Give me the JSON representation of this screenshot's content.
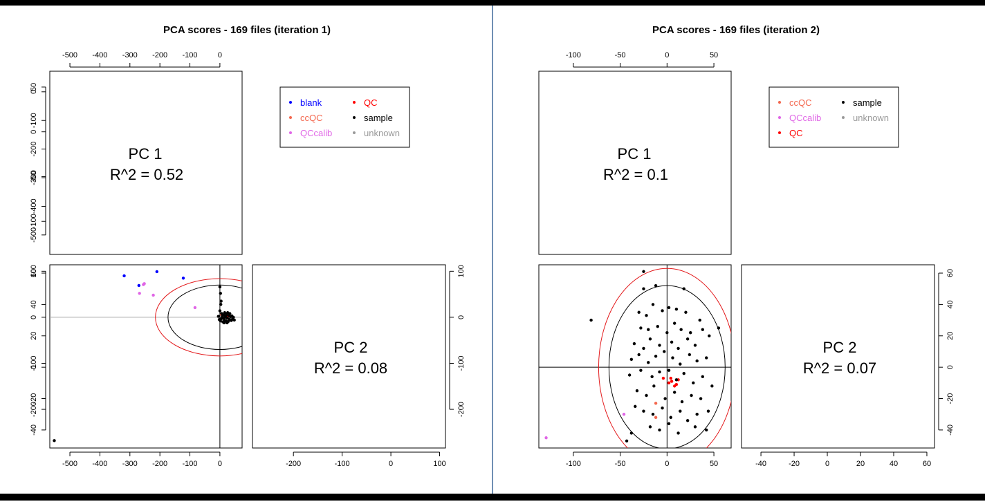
{
  "chart_data": [
    {
      "type": "scatter",
      "title": "PCA scores - 169 files (iteration 1)",
      "annotations": [
        "PC 1",
        "R^2 = 0.52",
        "PC 2",
        "R^2 = 0.08"
      ],
      "xlim": [
        -567,
        74
      ],
      "xticks": [
        -500,
        -400,
        -300,
        -200,
        -100,
        0
      ],
      "ylim": [
        -284,
        114
      ],
      "yticks": [
        100,
        0,
        -100,
        -200
      ],
      "y1lim": [
        -568,
        72
      ],
      "y1ticks": [
        0,
        -100,
        -200,
        -300,
        -400,
        -500
      ],
      "x2lim": [
        -284,
        112
      ],
      "x2ticks": [
        -200,
        -100,
        0,
        100
      ],
      "ellipses": [
        {
          "color": "#000000",
          "rx": 173,
          "ry": 70
        },
        {
          "color": "#e31a1c",
          "rx": 215,
          "ry": 84
        }
      ],
      "series": [
        {
          "name": "blank",
          "color": "#0000ff",
          "x": [
            -319,
            -270,
            -210,
            -122
          ],
          "y": [
            90,
            69,
            99,
            85
          ]
        },
        {
          "name": "ccQC",
          "color": "#f4674e",
          "x": [
            5
          ],
          "y": [
            6
          ]
        },
        {
          "name": "QCcalib",
          "color": "#e066e6",
          "x": [
            -268,
            -252,
            -222,
            -255,
            -83
          ],
          "y": [
            52,
            73,
            48,
            71,
            21
          ]
        },
        {
          "name": "QC",
          "color": "#ff0000",
          "x": [
            18,
            22,
            26
          ],
          "y": [
            4,
            6,
            2
          ]
        },
        {
          "name": "sample",
          "color": "#000000",
          "x": [
            -552,
            0,
            2,
            4,
            3,
            0,
            -2,
            2,
            5,
            8,
            10,
            12,
            15,
            18,
            20,
            22,
            25,
            28,
            30,
            32,
            35,
            38,
            40,
            42,
            45,
            6,
            14,
            24,
            33,
            16,
            26,
            -5,
            48,
            12,
            20
          ],
          "y": [
            -268,
            66,
            52,
            35,
            28,
            14,
            -5,
            -8,
            -3,
            2,
            -10,
            5,
            -6,
            3,
            -8,
            6,
            -2,
            -9,
            4,
            -5,
            1,
            -7,
            3,
            -4,
            0,
            8,
            -12,
            -12,
            8,
            10,
            10,
            2,
            -6,
            -2,
            0
          ]
        },
        {
          "name": "unknown",
          "color": "#999999",
          "x": [],
          "y": []
        }
      ]
    },
    {
      "type": "scatter",
      "title": "PCA scores - 169 files (iteration 2)",
      "annotations": [
        "PC 1",
        "R^2 = 0.1",
        "PC 2",
        "R^2 = 0.07"
      ],
      "xlim": [
        -136.8,
        68.4
      ],
      "xticks": [
        -100,
        -50,
        0,
        50
      ],
      "ylim": [
        -51.5,
        65.3
      ],
      "yticks": [
        60,
        40,
        20,
        0,
        -20,
        -40
      ],
      "y1lim": [
        -136.9,
        67.7
      ],
      "y1ticks": [
        50,
        0,
        -50,
        -100
      ],
      "x2lim": [
        -51.7,
        64.6
      ],
      "x2ticks": [
        -40,
        -20,
        0,
        20,
        40,
        60
      ],
      "ellipses": [
        {
          "color": "#000000",
          "rx": 62,
          "ry": 52
        },
        {
          "color": "#e31a1c",
          "rx": 73,
          "ry": 63
        }
      ],
      "series": [
        {
          "name": "ccQC",
          "color": "#f4674e",
          "x": [
            -12,
            -12
          ],
          "y": [
            -23,
            -32
          ]
        },
        {
          "name": "QCcalib",
          "color": "#e066e6",
          "x": [
            -129,
            -46
          ],
          "y": [
            -45,
            -30
          ]
        },
        {
          "name": "QC",
          "color": "#ff0000",
          "x": [
            -4,
            2,
            5,
            8,
            10,
            12,
            4
          ],
          "y": [
            -7,
            -10,
            -9,
            -12,
            -11,
            -8,
            -7
          ]
        },
        {
          "name": "sample",
          "color": "#000000",
          "x": [
            -43,
            -38,
            -25,
            -12,
            18,
            30,
            42,
            55,
            -30,
            -22,
            -15,
            -5,
            2,
            10,
            20,
            35,
            -28,
            -20,
            -10,
            0,
            8,
            15,
            25,
            38,
            -35,
            -25,
            -18,
            -8,
            5,
            12,
            22,
            30,
            45,
            -38,
            -30,
            -20,
            -12,
            -3,
            6,
            14,
            24,
            32,
            42,
            -40,
            -28,
            -16,
            -8,
            2,
            10,
            18,
            28,
            38,
            48,
            -32,
            -22,
            -14,
            -2,
            8,
            16,
            26,
            36,
            -25,
            -15,
            -5,
            4,
            14,
            22,
            32,
            -18,
            -8,
            12,
            2,
            -34,
            44,
            -81,
            -25
          ],
          "y": [
            -47,
            -42,
            50,
            52,
            50,
            -38,
            -40,
            25,
            35,
            33,
            40,
            36,
            38,
            37,
            35,
            30,
            25,
            24,
            26,
            22,
            28,
            24,
            22,
            24,
            15,
            12,
            18,
            14,
            16,
            12,
            18,
            14,
            20,
            5,
            8,
            3,
            7,
            10,
            6,
            2,
            8,
            4,
            6,
            -5,
            -2,
            -6,
            -3,
            -2,
            -8,
            -4,
            -10,
            -6,
            -12,
            -15,
            -18,
            -12,
            -20,
            -16,
            -22,
            -18,
            -20,
            -28,
            -30,
            -26,
            -32,
            -28,
            -34,
            -30,
            -38,
            -40,
            -42,
            -36,
            -25,
            -28,
            30,
            61
          ]
        },
        {
          "name": "unknown",
          "color": "#999999",
          "x": [],
          "y": []
        }
      ]
    }
  ]
}
